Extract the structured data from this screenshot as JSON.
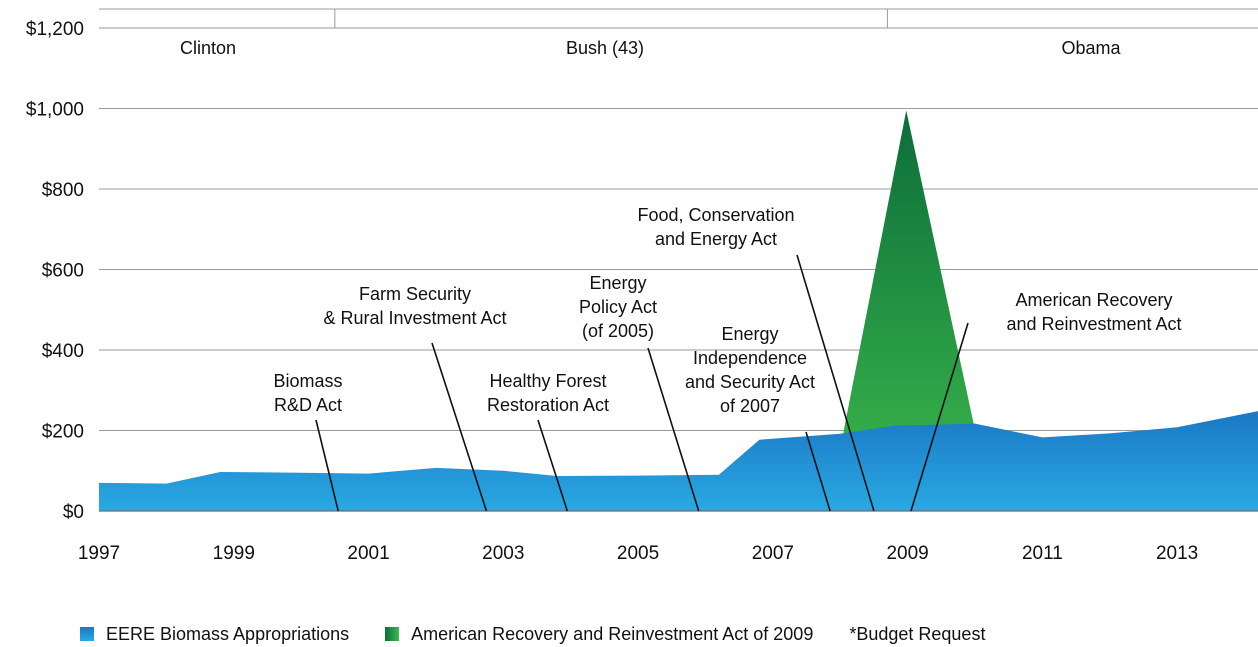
{
  "chart_data": {
    "type": "area",
    "x_ticks": [
      "1997",
      "1999",
      "2001",
      "2003",
      "2005",
      "2007",
      "2009",
      "2011",
      "2013"
    ],
    "y_ticks": [
      "$0",
      "$200",
      "$400",
      "$600",
      "$800",
      "$1,000",
      "$1,200"
    ],
    "ylim": [
      0,
      1200
    ],
    "xlim": [
      1997,
      2014.2
    ],
    "grid": true,
    "presidents": [
      {
        "name": "Clinton",
        "from": 1997,
        "to": 2000.5
      },
      {
        "name": "Bush (43)",
        "from": 2000.5,
        "to": 2008.7
      },
      {
        "name": "Obama",
        "from": 2008.7,
        "to": 2014.2
      }
    ],
    "series": [
      {
        "name": "EERE Biomass Appropriations",
        "color": "#2596d6",
        "points": [
          [
            1997,
            70
          ],
          [
            1998,
            68
          ],
          [
            1998.8,
            97
          ],
          [
            2000,
            95
          ],
          [
            2001,
            93
          ],
          [
            2002,
            107
          ],
          [
            2003,
            100
          ],
          [
            2003.8,
            87
          ],
          [
            2005,
            88
          ],
          [
            2006.2,
            90
          ],
          [
            2006.8,
            177
          ],
          [
            2008,
            192
          ],
          [
            2008.8,
            212
          ],
          [
            2010,
            217
          ],
          [
            2011,
            183
          ],
          [
            2012,
            193
          ],
          [
            2013,
            208
          ],
          [
            2014.2,
            248
          ]
        ]
      },
      {
        "name": "American Recovery and Reinvestment Act of 2009",
        "color": "#2aa849",
        "points": [
          [
            2008.05,
            198
          ],
          [
            2008.98,
            995
          ],
          [
            2009.98,
            217
          ]
        ]
      }
    ],
    "annotations": [
      {
        "lines": [
          "Biomass",
          "R&D Act"
        ],
        "x": 2000.6
      },
      {
        "lines": [
          "Farm Security",
          "& Rural Investment Act"
        ],
        "x": 2002.8
      },
      {
        "lines": [
          "Healthy Forest",
          "Restoration Act"
        ],
        "x": 2004
      },
      {
        "lines": [
          "Energy",
          "Policy Act",
          "(of 2005)"
        ],
        "x": 2005.95
      },
      {
        "lines": [
          "Energy",
          "Independence",
          "and Security Act",
          "of 2007"
        ],
        "x": 2007.9
      },
      {
        "lines": [
          "Food, Conservation",
          "and Energy Act"
        ],
        "x": 2008.5
      },
      {
        "lines": [
          "American Recovery",
          "and Reinvestment Act"
        ],
        "x": 2009.1
      }
    ],
    "legend": [
      {
        "label": "EERE Biomass Appropriations",
        "color": "#2596d6"
      },
      {
        "label": "American Recovery and Reinvestment Act of 2009",
        "color": "#2aa849"
      },
      {
        "label": "*Budget Request",
        "color": ""
      }
    ]
  }
}
